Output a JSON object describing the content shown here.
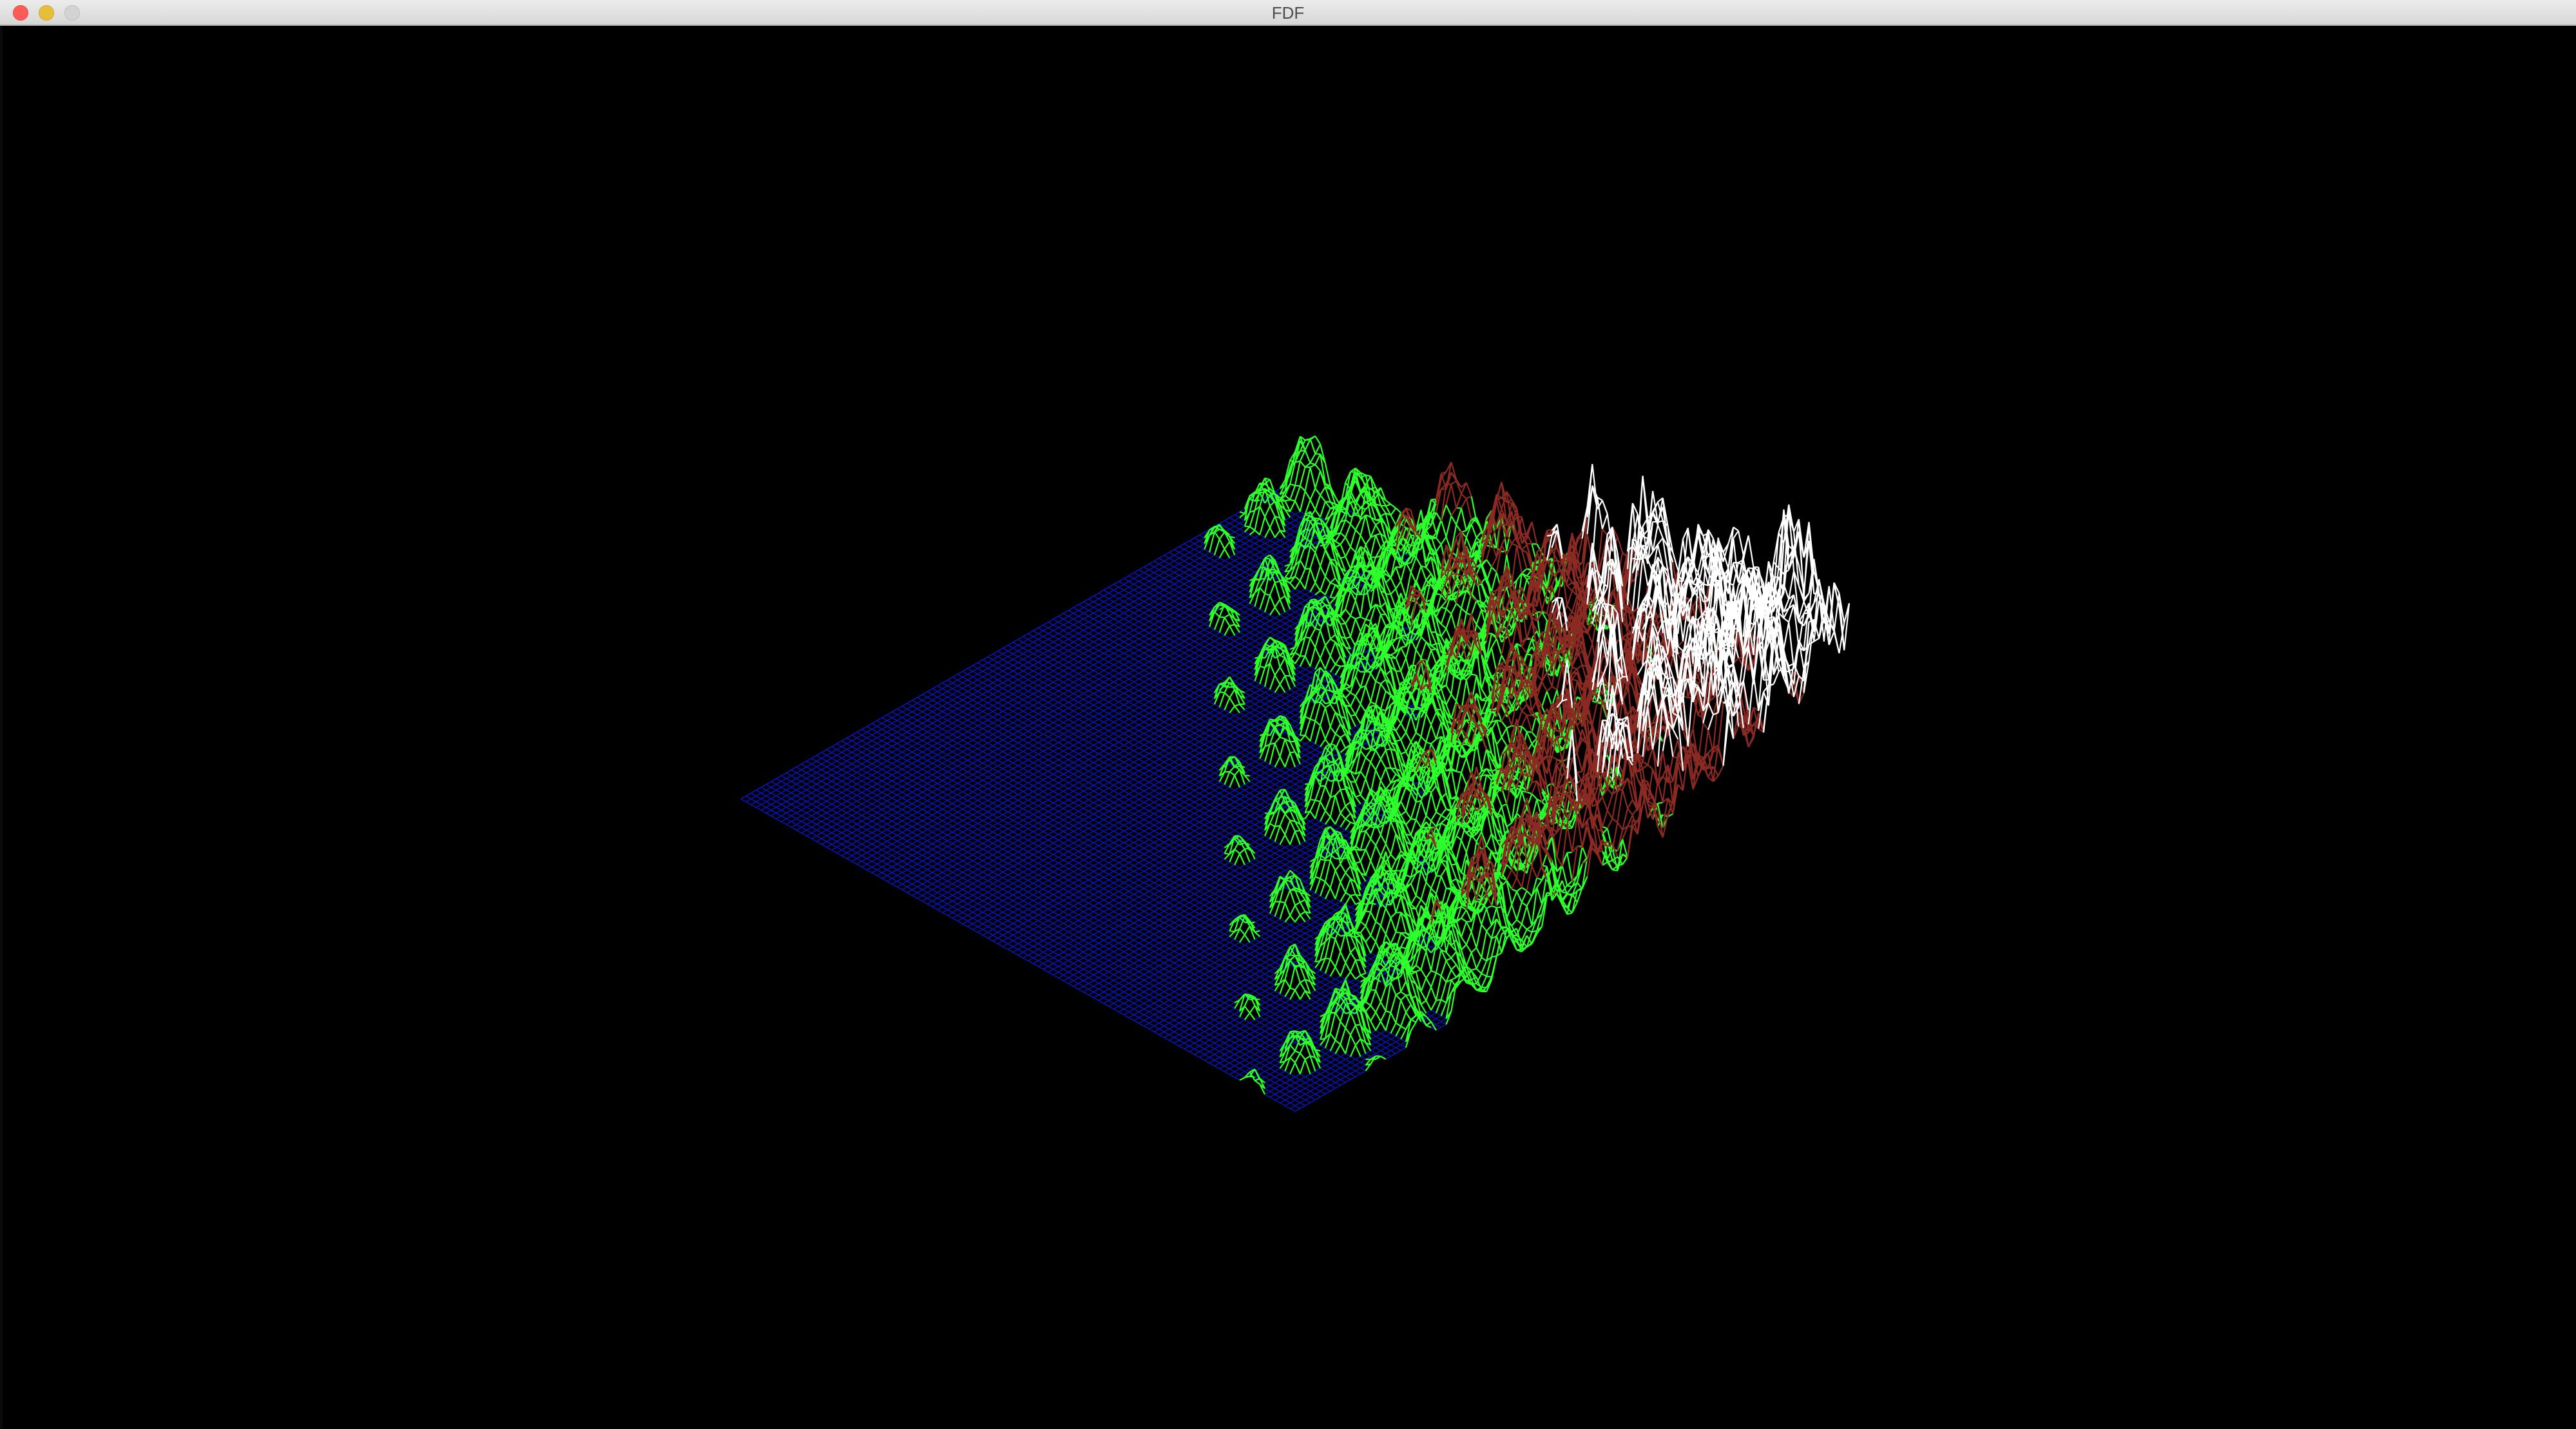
{
  "window": {
    "title": "FDF",
    "buttons": {
      "close": "close-button",
      "minimize": "minimize-button",
      "zoom": "zoom-button"
    }
  },
  "render": {
    "background": "#000000",
    "colors": {
      "low": "#0a14b4",
      "mid": "#2cff2c",
      "high": "#8b2a22",
      "peak": "#ffffff"
    }
  }
}
